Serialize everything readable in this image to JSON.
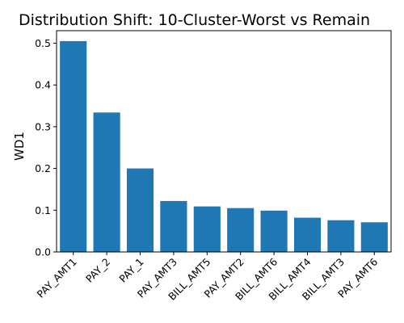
{
  "chart_data": {
    "type": "bar",
    "title": "Distribution Shift: 10-Cluster-Worst vs Remain",
    "xlabel": "",
    "ylabel": "WD1",
    "categories": [
      "PAY_AMT1",
      "PAY_2",
      "PAY_1",
      "PAY_AMT3",
      "BILL_AMT5",
      "PAY_AMT2",
      "BILL_AMT6",
      "BILL_AMT4",
      "BILL_AMT3",
      "PAY_AMT6"
    ],
    "values": [
      0.505,
      0.334,
      0.2,
      0.122,
      0.109,
      0.105,
      0.099,
      0.082,
      0.076,
      0.071
    ],
    "ylim": [
      0,
      0.53
    ],
    "yticks": [
      0.0,
      0.1,
      0.2,
      0.3,
      0.4,
      0.5
    ],
    "ytick_labels": [
      "0.0",
      "0.1",
      "0.2",
      "0.3",
      "0.4",
      "0.5"
    ],
    "bar_color": "#1f77b4",
    "grid": false,
    "legend": "none"
  }
}
